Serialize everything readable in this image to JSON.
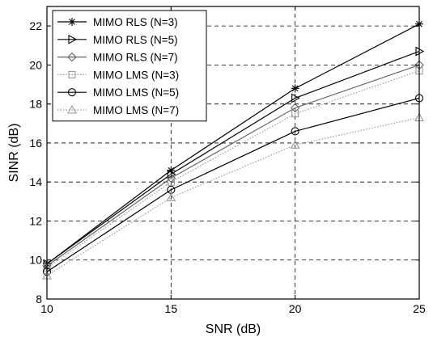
{
  "chart_data": {
    "type": "line",
    "title": "",
    "xlabel": "SNR (dB)",
    "ylabel": "SINR (dB)",
    "x": [
      10,
      15,
      20,
      25
    ],
    "xlim": [
      10,
      25
    ],
    "ylim": [
      8,
      23
    ],
    "xticks": [
      "10",
      "15",
      "20",
      "25"
    ],
    "yticks": [
      "8",
      "10",
      "12",
      "14",
      "16",
      "18",
      "20",
      "22"
    ],
    "grid": true,
    "legend_position": "top-left",
    "series": [
      {
        "name": "MIMO RLS (N=3)",
        "values": [
          9.8,
          14.6,
          18.8,
          22.1
        ],
        "marker": "star",
        "line": "solid",
        "color": "#000000"
      },
      {
        "name": "MIMO RLS (N=5)",
        "values": [
          9.8,
          14.4,
          18.3,
          20.7
        ],
        "marker": "triangle-right",
        "line": "solid",
        "color": "#000000"
      },
      {
        "name": "MIMO RLS (N=7)",
        "values": [
          9.7,
          14.2,
          17.8,
          20.0
        ],
        "marker": "diamond",
        "line": "solid",
        "color": "#666666"
      },
      {
        "name": "MIMO LMS (N=3)",
        "values": [
          9.6,
          14.0,
          17.5,
          19.7
        ],
        "marker": "square",
        "line": "dotted",
        "color": "#999999"
      },
      {
        "name": "MIMO LMS (N=5)",
        "values": [
          9.4,
          13.6,
          16.6,
          18.3
        ],
        "marker": "circle",
        "line": "solid",
        "color": "#000000"
      },
      {
        "name": "MIMO LMS (N=7)",
        "values": [
          9.2,
          13.2,
          15.9,
          17.3
        ],
        "marker": "triangle-up",
        "line": "dotted",
        "color": "#999999"
      }
    ]
  }
}
